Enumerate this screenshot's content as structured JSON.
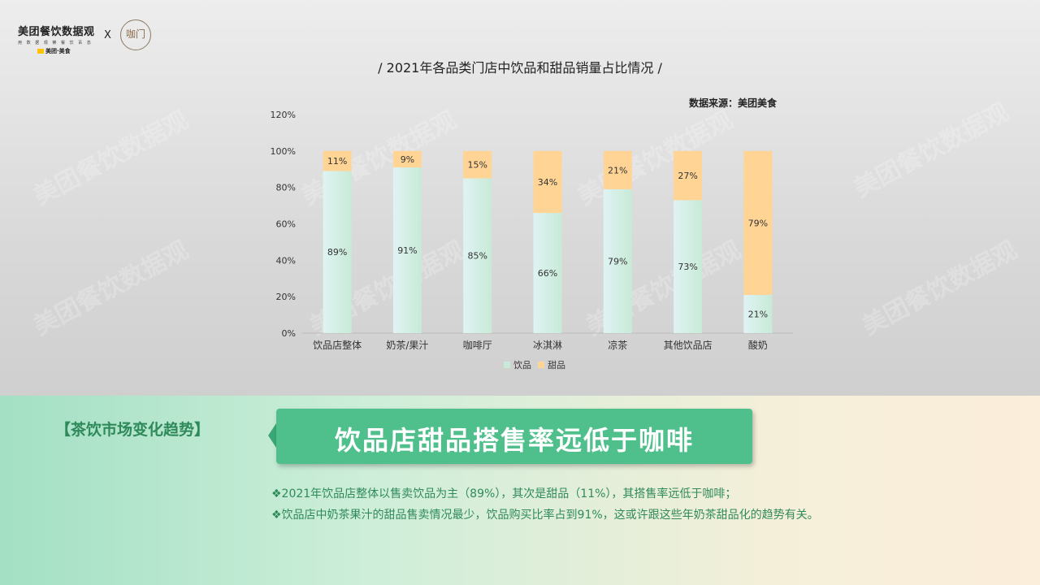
{
  "header": {
    "logo_title": "美团餐饮数据观",
    "logo_sub": "用 数 据 观 察 餐 饮 百 态",
    "logo_brand": "美团·美食",
    "cross": "X",
    "partner_logo_text": "咖门"
  },
  "watermark": "美团餐饮数据观",
  "chart_title": "/ 2021年各品类门店中饮品和甜品销量占比情况 /",
  "source": "数据来源：美团美食",
  "colors": {
    "drink": "#c8ead7",
    "dessert": "#ffd494",
    "accent": "#4fc08b",
    "text_green": "#2f8a5a"
  },
  "chart_data": {
    "type": "bar",
    "stacked": true,
    "categories": [
      "饮品店整体",
      "奶茶/果汁",
      "咖啡厅",
      "冰淇淋",
      "凉茶",
      "其他饮品店",
      "酸奶"
    ],
    "series": [
      {
        "name": "饮品",
        "values": [
          89,
          91,
          85,
          66,
          79,
          73,
          21
        ],
        "labels": [
          "89%",
          "91%",
          "85%",
          "66%",
          "79%",
          "73%",
          "21%"
        ]
      },
      {
        "name": "甜品",
        "values": [
          11,
          9,
          15,
          34,
          21,
          27,
          79
        ],
        "labels": [
          "11%",
          "9%",
          "15%",
          "34%",
          "21%",
          "27%",
          "79%"
        ]
      }
    ],
    "y_ticks": [
      "0%",
      "20%",
      "40%",
      "60%",
      "80%",
      "100%",
      "120%"
    ],
    "ylim": [
      0,
      120
    ],
    "legend": "bottom"
  },
  "section_tag": "【茶饮市场变化趋势】",
  "headline": "饮品店甜品搭售率远低于咖啡",
  "notes": [
    "❖2021年饮品店整体以售卖饮品为主（89%），其次是甜品（11%），其搭售率远低于咖啡；",
    "❖饮品店中奶茶果汁的甜品售卖情况最少，饮品购买比率占到91%，这或许跟这些年奶茶甜品化的趋势有关。"
  ]
}
